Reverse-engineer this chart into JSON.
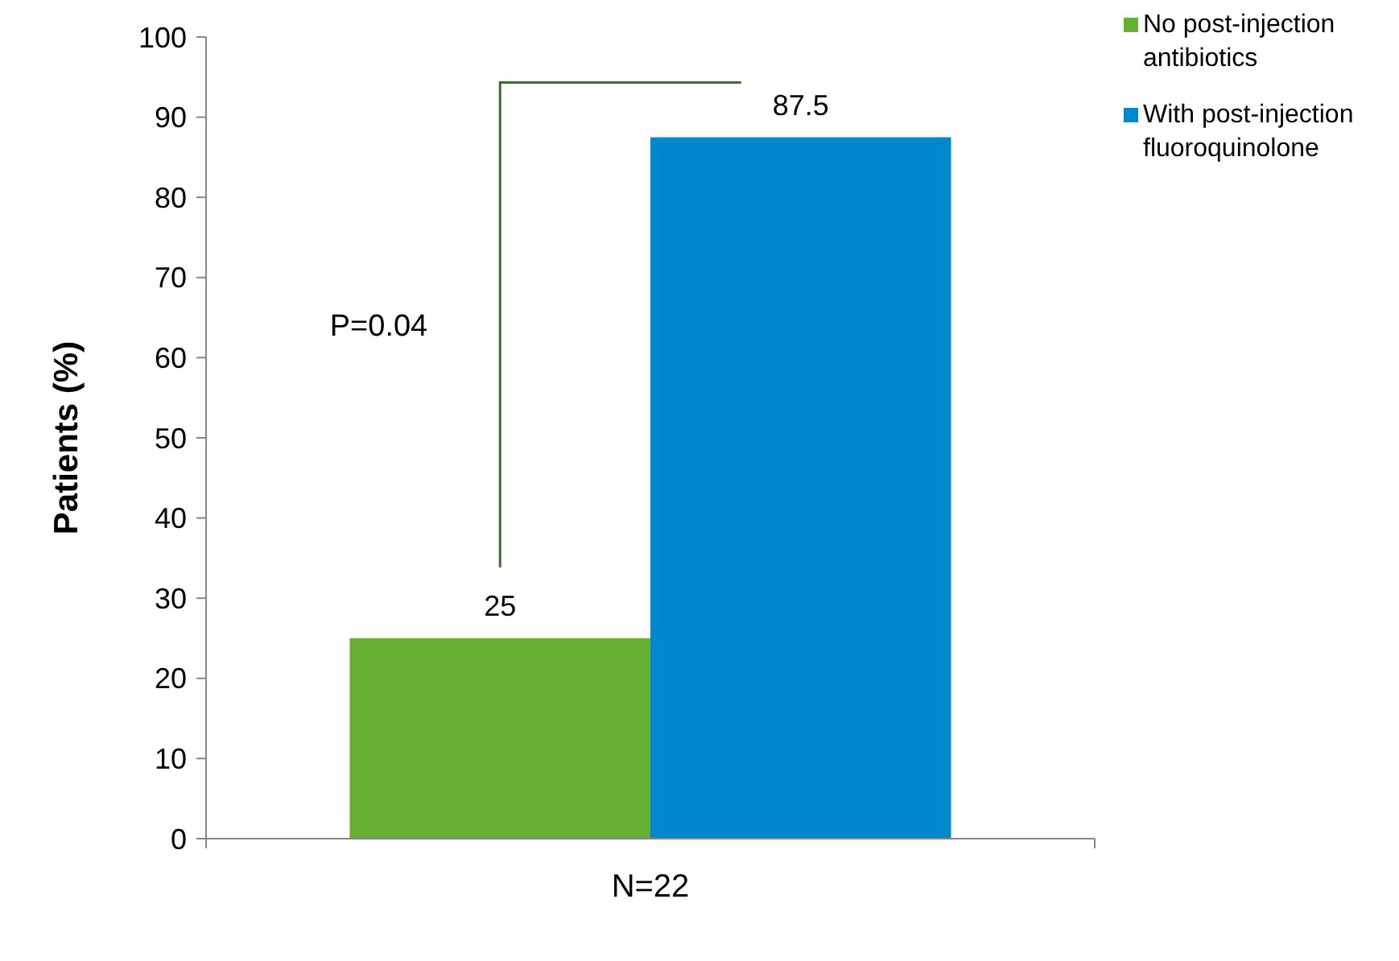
{
  "chart_data": {
    "type": "bar",
    "categories": [
      "N=22"
    ],
    "series": [
      {
        "name": "No post-injection antibiotics",
        "color": "#66b032",
        "values": [
          25
        ]
      },
      {
        "name": "With post-injection fluoroquinolone",
        "color": "#0088cc",
        "values": [
          87.5
        ]
      }
    ],
    "ylabel": "Patients (%)",
    "ylim": [
      0,
      100
    ],
    "yticks": [
      0,
      10,
      20,
      30,
      40,
      50,
      60,
      70,
      80,
      90,
      100
    ],
    "data_labels": true,
    "legend": "top right",
    "grid": false,
    "annotations": [
      "P=0.04"
    ]
  }
}
